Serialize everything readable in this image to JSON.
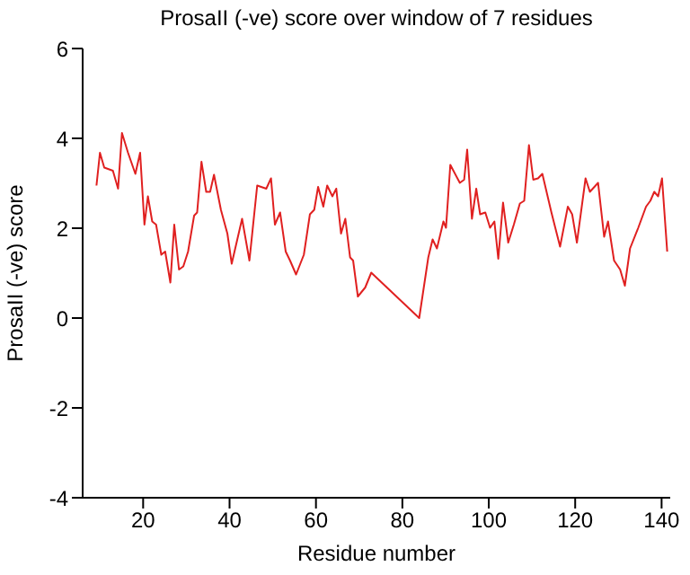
{
  "chart_data": {
    "type": "line",
    "title": "ProsaII (-ve) score over window of 7 residues",
    "xlabel": "Residue number",
    "ylabel": "ProsaII (-ve) score",
    "x": [
      9.2,
      10,
      11,
      13,
      14.2,
      15.1,
      16.5,
      18.2,
      19.3,
      20.3,
      21.1,
      22.1,
      23,
      24.2,
      25.1,
      26.3,
      27.2,
      28.3,
      29.3,
      30.4,
      31.8,
      32.5,
      33.5,
      34.6,
      35.5,
      36.4,
      38,
      39.5,
      40.5,
      42.9,
      44.6,
      46.4,
      48.5,
      49.6,
      50.5,
      51.7,
      53,
      54,
      55.4,
      57.2,
      58.6,
      59.6,
      60.5,
      61.7,
      62.6,
      63.8,
      64.7,
      65.8,
      66.8,
      67.9,
      68.6,
      69.7,
      71.4,
      72.8,
      83.9,
      86,
      87,
      88,
      89.5,
      90.1,
      91.1,
      93.3,
      94.3,
      95,
      96.1,
      97.1,
      98,
      99.2,
      100.3,
      101.3,
      102.2,
      103.3,
      104.5,
      105.8,
      107.2,
      108.2,
      109.3,
      110.3,
      111.4,
      112.4,
      114.5,
      116.5,
      118.3,
      119.3,
      120.4,
      122.4,
      123.4,
      125.3,
      126.7,
      127.6,
      129,
      130.4,
      131.5,
      132.7,
      134.6,
      136.4,
      137.4,
      138.3,
      139.2,
      140.1,
      141.3
    ],
    "series": [
      {
        "color": "#e02020",
        "values": [
          2.95,
          3.68,
          3.35,
          3.28,
          2.88,
          4.12,
          3.68,
          3.21,
          3.68,
          2.08,
          2.71,
          2.15,
          2.08,
          1.41,
          1.48,
          0.79,
          2.08,
          1.08,
          1.15,
          1.48,
          2.28,
          2.35,
          3.48,
          2.81,
          2.81,
          3.19,
          2.41,
          1.88,
          1.21,
          2.21,
          1.28,
          2.95,
          2.88,
          3.11,
          2.08,
          2.35,
          1.48,
          1.28,
          0.97,
          1.41,
          2.31,
          2.41,
          2.92,
          2.48,
          2.95,
          2.71,
          2.88,
          1.88,
          2.21,
          1.35,
          1.28,
          0.48,
          0.68,
          1.01,
          0,
          1.35,
          1.75,
          1.55,
          2.15,
          2.01,
          3.41,
          3.01,
          3.08,
          3.75,
          2.21,
          2.88,
          2.31,
          2.35,
          2.01,
          2.15,
          1.32,
          2.57,
          1.68,
          2.08,
          2.55,
          2.61,
          3.85,
          3.08,
          3.11,
          3.21,
          2.35,
          1.59,
          2.48,
          2.31,
          1.68,
          3.11,
          2.81,
          3.01,
          1.81,
          2.15,
          1.28,
          1.08,
          0.72,
          1.55,
          2.01,
          2.48,
          2.61,
          2.81,
          2.71,
          3.11,
          1.48
        ]
      }
    ],
    "xlim": [
      6,
      142
    ],
    "xticks": [
      20,
      40,
      60,
      80,
      100,
      120,
      140
    ],
    "ylim": [
      -4,
      6
    ],
    "yticks": [
      -4,
      -2,
      0,
      2,
      4,
      6
    ],
    "grid": false,
    "legend": false,
    "marker": "none",
    "line_style": "solid"
  }
}
